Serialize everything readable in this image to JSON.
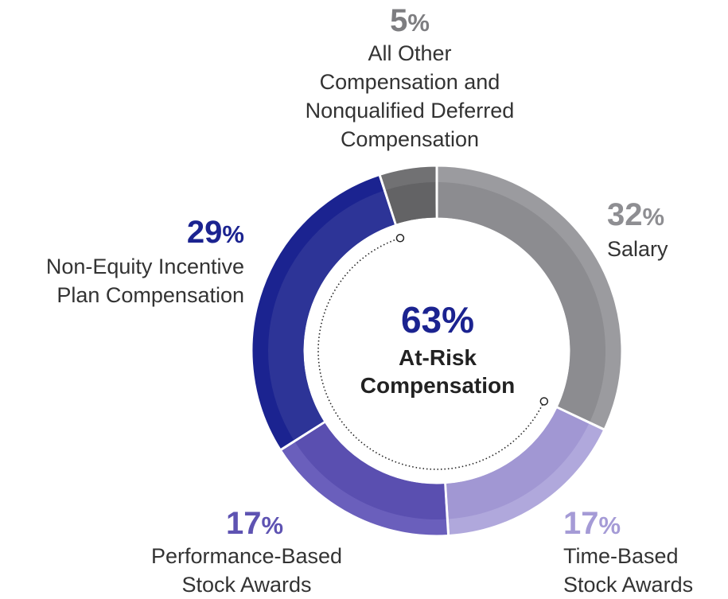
{
  "chart_data": {
    "type": "donut",
    "slices": [
      {
        "label": "Salary",
        "value": 32,
        "pct_text": "32",
        "color": "#9b9b9f",
        "inner_color": "#8c8c90",
        "at_risk": false
      },
      {
        "label": "Time-Based Stock Awards",
        "value": 17,
        "pct_text": "17",
        "color": "#b0a8dc",
        "inner_color": "#a197d3",
        "at_risk": true
      },
      {
        "label": "Performance-Based Stock Awards",
        "value": 17,
        "pct_text": "17",
        "color": "#6a5fbc",
        "inner_color": "#5a4fb0",
        "at_risk": true
      },
      {
        "label": "Non-Equity Incentive Plan Compensation",
        "value": 29,
        "pct_text": "29",
        "color": "#1b2390",
        "inner_color": "#2d3497",
        "at_risk": true
      },
      {
        "label": "All Other Compensation and Nonqualified Deferred Compensation",
        "value": 5,
        "pct_text": "5",
        "color": "#717173",
        "inner_color": "#636365",
        "at_risk": false
      }
    ],
    "percent_sign": "%",
    "center": {
      "value": "63%",
      "label_line1": "At-Risk",
      "label_line2": "Compensation"
    }
  },
  "labels": {
    "salary": {
      "line1": "Salary"
    },
    "time_based": {
      "line1": "Time-Based",
      "line2": "Stock Awards"
    },
    "performance_based": {
      "line1": "Performance-Based",
      "line2": "Stock Awards"
    },
    "non_equity": {
      "line1": "Non-Equity Incentive",
      "line2": "Plan Compensation"
    },
    "all_other": {
      "line1": "All Other",
      "line2": "Compensation and",
      "line3": "Nonqualified Deferred",
      "line4": "Compensation"
    }
  },
  "colors": {
    "salary_pct": "#8e8e92",
    "time_based_pct": "#a59bd6",
    "performance_pct": "#5e53b2",
    "non_equity_pct": "#1b2390",
    "all_other_pct": "#7d7d80",
    "center_pct": "#1b2390",
    "bracket": "#222222"
  }
}
